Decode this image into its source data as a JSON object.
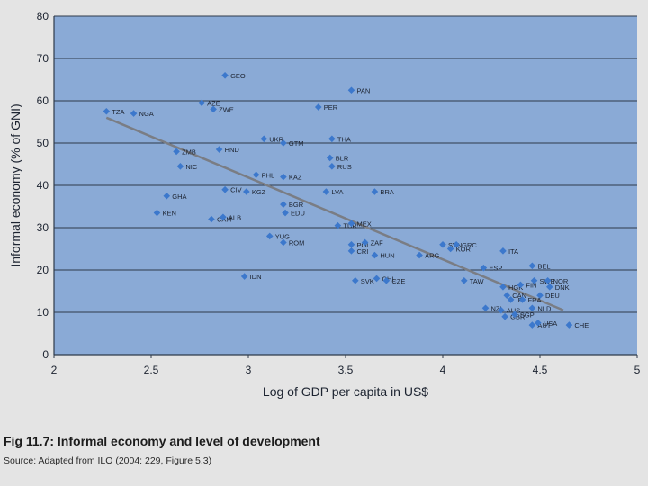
{
  "chart_data": {
    "type": "scatter",
    "xlabel": "Log of GDP per capita in US$",
    "ylabel": "Informal economy (% of GNI)",
    "xlim": [
      2,
      5
    ],
    "ylim": [
      0,
      80
    ],
    "xticks": [
      "2",
      "2.5",
      "3",
      "3.5",
      "4",
      "4.5",
      "5"
    ],
    "yticks": [
      "0",
      "10",
      "20",
      "30",
      "40",
      "50",
      "60",
      "70",
      "80"
    ],
    "grid": "horizontal",
    "points": [
      {
        "label": "TZA",
        "x": 2.27,
        "y": 57.5
      },
      {
        "label": "NGA",
        "x": 2.41,
        "y": 57.0
      },
      {
        "label": "GEO",
        "x": 2.88,
        "y": 66.0
      },
      {
        "label": "AZE",
        "x": 2.76,
        "y": 59.5
      },
      {
        "label": "ZWE",
        "x": 2.82,
        "y": 58.0
      },
      {
        "label": "PAN",
        "x": 3.53,
        "y": 62.5
      },
      {
        "label": "PER",
        "x": 3.36,
        "y": 58.5
      },
      {
        "label": "UKR",
        "x": 3.08,
        "y": 51.0
      },
      {
        "label": "GTM",
        "x": 3.18,
        "y": 50.0
      },
      {
        "label": "THA",
        "x": 3.43,
        "y": 51.0
      },
      {
        "label": "ZMB",
        "x": 2.63,
        "y": 48.0
      },
      {
        "label": "HND",
        "x": 2.85,
        "y": 48.5
      },
      {
        "label": "BLR",
        "x": 3.42,
        "y": 46.5
      },
      {
        "label": "RUS",
        "x": 3.43,
        "y": 44.5
      },
      {
        "label": "NIC",
        "x": 2.65,
        "y": 44.5
      },
      {
        "label": "PHL",
        "x": 3.04,
        "y": 42.5
      },
      {
        "label": "KAZ",
        "x": 3.18,
        "y": 42.0
      },
      {
        "label": "CIV",
        "x": 2.88,
        "y": 39.0
      },
      {
        "label": "KGZ",
        "x": 2.99,
        "y": 38.5
      },
      {
        "label": "LVA",
        "x": 3.4,
        "y": 38.5
      },
      {
        "label": "BRA",
        "x": 3.65,
        "y": 38.5
      },
      {
        "label": "GHA",
        "x": 2.58,
        "y": 37.5
      },
      {
        "label": "BGR",
        "x": 3.18,
        "y": 35.5
      },
      {
        "label": "EDU",
        "x": 3.19,
        "y": 33.5
      },
      {
        "label": "KEN",
        "x": 2.53,
        "y": 33.5
      },
      {
        "label": "CAM",
        "x": 2.81,
        "y": 32.0
      },
      {
        "label": "ALB",
        "x": 2.87,
        "y": 32.5
      },
      {
        "label": "TUR",
        "x": 3.46,
        "y": 30.5
      },
      {
        "label": "MEX",
        "x": 3.53,
        "y": 31.0
      },
      {
        "label": "YUG",
        "x": 3.11,
        "y": 28.0
      },
      {
        "label": "ROM",
        "x": 3.18,
        "y": 26.5
      },
      {
        "label": "POL",
        "x": 3.53,
        "y": 26.0
      },
      {
        "label": "ZAF",
        "x": 3.6,
        "y": 26.5
      },
      {
        "label": "CRI",
        "x": 3.53,
        "y": 24.5
      },
      {
        "label": "HUN",
        "x": 3.65,
        "y": 23.5
      },
      {
        "label": "SVN",
        "x": 4.0,
        "y": 26.0
      },
      {
        "label": "GRC",
        "x": 4.07,
        "y": 26.0
      },
      {
        "label": "KOR",
        "x": 4.04,
        "y": 25.0
      },
      {
        "label": "ARG",
        "x": 3.88,
        "y": 23.5
      },
      {
        "label": "ITA",
        "x": 4.31,
        "y": 24.5
      },
      {
        "label": "BEL",
        "x": 4.46,
        "y": 21.0
      },
      {
        "label": "ESP",
        "x": 4.21,
        "y": 20.5
      },
      {
        "label": "CHL",
        "x": 3.66,
        "y": 18.0
      },
      {
        "label": "SVK",
        "x": 3.55,
        "y": 17.5
      },
      {
        "label": "CZE",
        "x": 3.71,
        "y": 17.5
      },
      {
        "label": "TAW",
        "x": 4.11,
        "y": 17.5
      },
      {
        "label": "IDN",
        "x": 2.98,
        "y": 18.5
      },
      {
        "label": "SWE",
        "x": 4.47,
        "y": 17.5
      },
      {
        "label": "NOR",
        "x": 4.54,
        "y": 17.5
      },
      {
        "label": "HGK",
        "x": 4.31,
        "y": 16.0
      },
      {
        "label": "FIN",
        "x": 4.4,
        "y": 16.5
      },
      {
        "label": "DNK",
        "x": 4.55,
        "y": 16.0
      },
      {
        "label": "CAN",
        "x": 4.33,
        "y": 14.0
      },
      {
        "label": "DEU",
        "x": 4.5,
        "y": 14.0
      },
      {
        "label": "IRL",
        "x": 4.35,
        "y": 13.0
      },
      {
        "label": "FRA",
        "x": 4.41,
        "y": 13.0
      },
      {
        "label": "NZL",
        "x": 4.22,
        "y": 11.0
      },
      {
        "label": "AUS",
        "x": 4.3,
        "y": 10.5
      },
      {
        "label": "NLD",
        "x": 4.46,
        "y": 11.0
      },
      {
        "label": "GBR",
        "x": 4.32,
        "y": 9.0
      },
      {
        "label": "SGP",
        "x": 4.37,
        "y": 9.5
      },
      {
        "label": "AUT",
        "x": 4.46,
        "y": 7.0
      },
      {
        "label": "USA",
        "x": 4.49,
        "y": 7.5
      },
      {
        "label": "CHE",
        "x": 4.65,
        "y": 7.0
      }
    ],
    "trendline": {
      "x": [
        2.27,
        4.62
      ],
      "y": [
        56.0,
        10.5
      ]
    }
  },
  "caption": "Fig 11.7: Informal economy and level of development",
  "source": "Source: Adapted from ILO (2004: 229, Figure 5.3)",
  "colors": {
    "plot_background": "#8aaad6",
    "marker": "#3c78cc",
    "gridline": "#2f3a4a",
    "trendline": "#7a7d84",
    "text": "#1c2330"
  }
}
